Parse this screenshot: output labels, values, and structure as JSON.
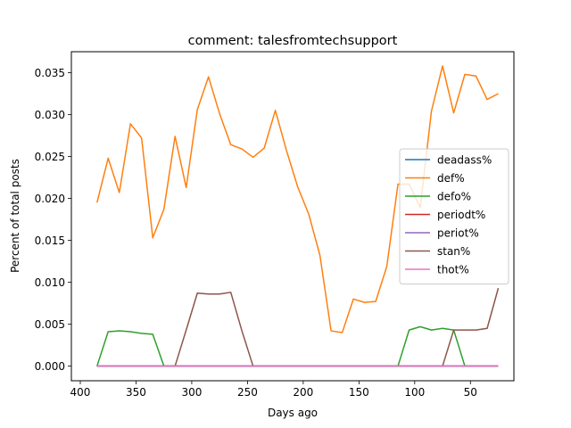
{
  "chart_data": {
    "type": "line",
    "title": "comment: talesfromtechsupport",
    "xlabel": "Days ago",
    "ylabel": "Percent of total posts",
    "xlim": [
      408,
      11
    ],
    "ylim": [
      -0.00175,
      0.0375
    ],
    "x_inverted": true,
    "grid": false,
    "legend_position": "center-right",
    "xticks": [
      400,
      350,
      300,
      250,
      200,
      150,
      100,
      50
    ],
    "xtick_labels": [
      "400",
      "350",
      "300",
      "250",
      "200",
      "150",
      "100",
      "50"
    ],
    "yticks": [
      0.0,
      0.005,
      0.01,
      0.015,
      0.02,
      0.025,
      0.03,
      0.035
    ],
    "ytick_labels": [
      "0.000",
      "0.005",
      "0.010",
      "0.015",
      "0.020",
      "0.025",
      "0.030",
      "0.035"
    ],
    "x": [
      385,
      375,
      365,
      355,
      345,
      335,
      325,
      315,
      305,
      295,
      285,
      275,
      265,
      255,
      245,
      235,
      225,
      215,
      205,
      195,
      185,
      175,
      165,
      155,
      145,
      135,
      125,
      115,
      105,
      95,
      85,
      75,
      65,
      55,
      45,
      35,
      25
    ],
    "series": [
      {
        "name": "deadass%",
        "color": "#1f77b4",
        "values": [
          0,
          0,
          0,
          0,
          0,
          0,
          0,
          0,
          0,
          0,
          0,
          0,
          0,
          0,
          0,
          0,
          0,
          0,
          0,
          0,
          0,
          0,
          0,
          0,
          0,
          0,
          0,
          0,
          0,
          0,
          0,
          0,
          0,
          0,
          0,
          0,
          0
        ]
      },
      {
        "name": "def%",
        "color": "#ff7f0e",
        "values": [
          0.0195,
          0.0248,
          0.0207,
          0.0289,
          0.0272,
          0.0153,
          0.0187,
          0.0274,
          0.0213,
          0.0306,
          0.0345,
          0.0301,
          0.0264,
          0.0259,
          0.0249,
          0.026,
          0.0305,
          0.0257,
          0.0214,
          0.0181,
          0.0132,
          0.0042,
          0.004,
          0.008,
          0.0076,
          0.0077,
          0.0119,
          0.0217,
          0.0217,
          0.0189,
          0.0304,
          0.0358,
          0.0302,
          0.0348,
          0.0346,
          0.0318,
          0.0325
        ]
      },
      {
        "name": "defo%",
        "color": "#2ca02c",
        "values": [
          0,
          0.0041,
          0.0042,
          0.0041,
          0.0039,
          0.0038,
          0,
          0,
          0,
          0,
          0,
          0,
          0,
          0,
          0,
          0,
          0,
          0,
          0,
          0,
          0,
          0,
          0,
          0,
          0,
          0,
          0,
          0,
          0.0043,
          0.0047,
          0.0043,
          0.0045,
          0.0043,
          0,
          0,
          0,
          0
        ]
      },
      {
        "name": "periodt%",
        "color": "#d62728",
        "values": [
          0,
          0,
          0,
          0,
          0,
          0,
          0,
          0,
          0,
          0,
          0,
          0,
          0,
          0,
          0,
          0,
          0,
          0,
          0,
          0,
          0,
          0,
          0,
          0,
          0,
          0,
          0,
          0,
          0,
          0,
          0,
          0,
          0,
          0,
          0,
          0,
          0
        ]
      },
      {
        "name": "periot%",
        "color": "#9467bd",
        "values": [
          0,
          0,
          0,
          0,
          0,
          0,
          0,
          0,
          0,
          0,
          0,
          0,
          0,
          0,
          0,
          0,
          0,
          0,
          0,
          0,
          0,
          0,
          0,
          0,
          0,
          0,
          0,
          0,
          0,
          0,
          0,
          0,
          0,
          0,
          0,
          0,
          0
        ]
      },
      {
        "name": "stan%",
        "color": "#8c564b",
        "values": [
          0,
          0,
          0,
          0,
          0,
          0,
          0,
          0,
          0.0043,
          0.0087,
          0.0086,
          0.0086,
          0.0088,
          0.0042,
          0,
          0,
          0,
          0,
          0,
          0,
          0,
          0,
          0,
          0,
          0,
          0,
          0,
          0,
          0,
          0,
          0,
          0,
          0.0043,
          0.0043,
          0.0043,
          0.0045,
          0.0093
        ]
      },
      {
        "name": "thot%",
        "color": "#e377c2",
        "values": [
          0,
          0,
          0,
          0,
          0,
          0,
          0,
          0,
          0,
          0,
          0,
          0,
          0,
          0,
          0,
          0,
          0,
          0,
          0,
          0,
          0,
          0,
          0,
          0,
          0,
          0,
          0,
          0,
          0,
          0,
          0,
          0,
          0,
          0,
          0,
          0,
          0
        ]
      }
    ]
  }
}
